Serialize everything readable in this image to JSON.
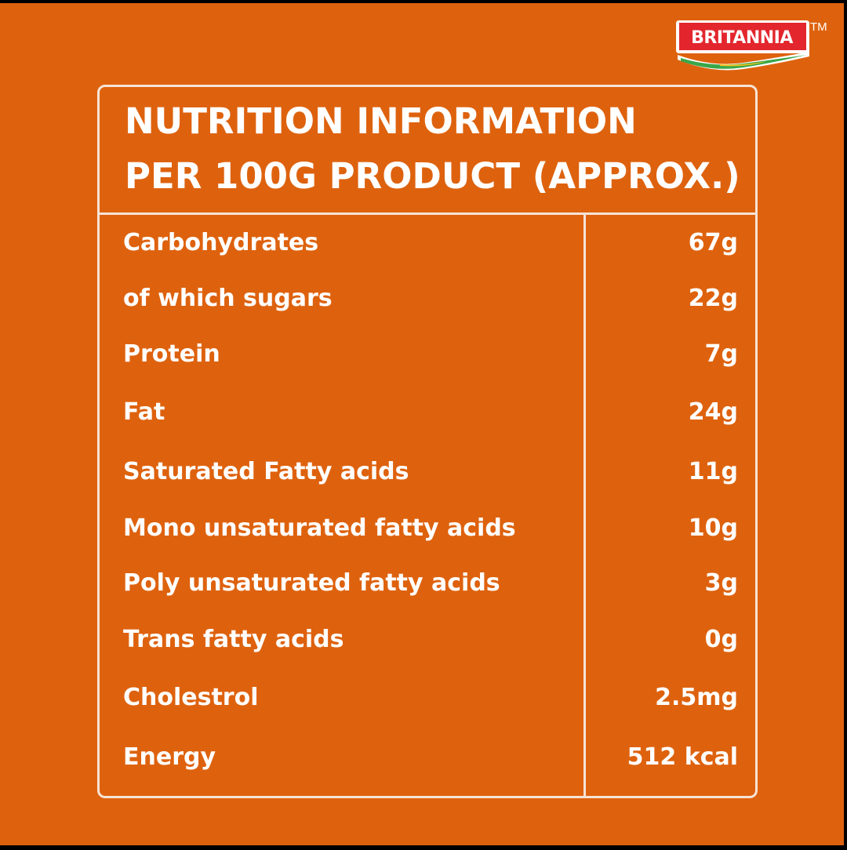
{
  "brand": {
    "name": "BRITANNIA",
    "trademark": "TM",
    "colors": {
      "badge": "#e3262d",
      "swoosh_green": "#3aa648",
      "swoosh_yellow": "#f6c21b"
    }
  },
  "title": {
    "line1": "NUTRITION INFORMATION",
    "line2": "PER 100G PRODUCT (APPROX.)"
  },
  "nutrition": [
    {
      "name": "Carbohydrates",
      "value": "67g"
    },
    {
      "name": "of which sugars",
      "value": "22g"
    },
    {
      "name": "Protein",
      "value": "7g"
    },
    {
      "name": "Fat",
      "value": "24g"
    },
    {
      "name": "Saturated Fatty acids",
      "value": "11g"
    },
    {
      "name": "Mono unsaturated fatty acids",
      "value": "10g"
    },
    {
      "name": "Poly unsaturated fatty acids",
      "value": "3g"
    },
    {
      "name": "Trans fatty acids",
      "value": "0g"
    },
    {
      "name": "Cholestrol",
      "value": "2.5mg"
    },
    {
      "name": "Energy",
      "value": "512 kcal"
    }
  ],
  "colors": {
    "background": "#de620e",
    "lines": "#f6e3d6",
    "text": "#ffffff"
  }
}
